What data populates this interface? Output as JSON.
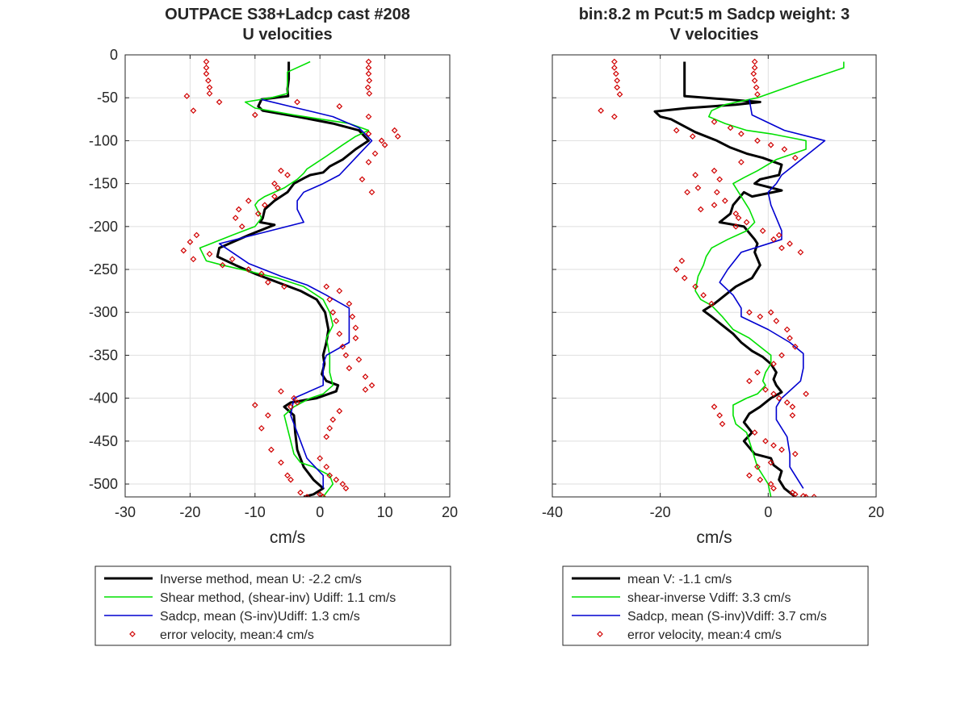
{
  "chart_data": [
    {
      "type": "line",
      "title": [
        "OUTPACE S38+Ladcp cast #208",
        "U velocities"
      ],
      "xlabel": "cm/s",
      "ylabel": "",
      "xlim": [
        -30,
        20
      ],
      "ylim": [
        -515,
        0
      ],
      "xticks": [
        "-30",
        "-20",
        "-10",
        "0",
        "10",
        "20"
      ],
      "yticks": [
        "0",
        "-50",
        "-100",
        "-150",
        "-200",
        "-250",
        "-300",
        "-350",
        "-400",
        "-450",
        "-500"
      ],
      "xtick_values": [
        -30,
        -20,
        -10,
        0,
        10,
        20
      ],
      "ytick_values": [
        0,
        -50,
        -100,
        -150,
        -200,
        -250,
        -300,
        -350,
        -400,
        -450,
        -500
      ],
      "grid": true,
      "legend_position": "below",
      "series": [
        {
          "name": "Inverse method, mean U:  -2.2 cm/s",
          "color": "#000000",
          "style": "thick-line",
          "x": [
            -4.8,
            -4.8,
            -5.0,
            -4.9,
            -9.0,
            -9.5,
            -8.8,
            -3.5,
            2.0,
            6.0,
            7.5,
            5.5,
            3.5,
            1.5,
            0.5,
            -1.5,
            -2.3,
            -4.0,
            -5.0,
            -7.0,
            -8.5,
            -8.8,
            -9.2,
            -7.0,
            -11.0,
            -15.5,
            -15.8,
            -13.0,
            -10.0,
            -6.5,
            -3.0,
            -0.5,
            0.8,
            1.3,
            1.0,
            0.5,
            0.7,
            0.3,
            1.0,
            2.8,
            2.5,
            -0.5,
            -4.5,
            -5.5,
            -4.0,
            -3.8,
            -3.5,
            -2.5,
            -1.0,
            0.5,
            -1.0,
            -2.5
          ],
          "y": [
            -8,
            -28,
            -40,
            -48,
            -52,
            -60,
            -65,
            -72,
            -80,
            -88,
            -100,
            -110,
            -122,
            -130,
            -137,
            -140,
            -143,
            -150,
            -160,
            -170,
            -180,
            -190,
            -195,
            -198,
            -210,
            -225,
            -235,
            -245,
            -255,
            -265,
            -275,
            -285,
            -300,
            -320,
            -335,
            -350,
            -360,
            -372,
            -380,
            -385,
            -392,
            -400,
            -405,
            -410,
            -420,
            -440,
            -460,
            -480,
            -495,
            -505,
            -512,
            -515
          ]
        },
        {
          "name": "Shear method, (shear-inv)  Udiff:  1.1 cm/s",
          "color": "#00e000",
          "style": "line",
          "x": [
            -1.5,
            -5.0,
            -5.0,
            -7.5,
            -11.5,
            -10.0,
            -4.0,
            4.5,
            7.5,
            5.5,
            3.5,
            1.0,
            -1.0,
            -2.0,
            -2.5,
            -3.5,
            -5.5,
            -8.5,
            -9.5,
            -10.0,
            -9.0,
            -10.0,
            -13.5,
            -18.5,
            -17.5,
            -15.0,
            -11.0,
            -6.5,
            -2.5,
            0.5,
            1.5,
            2.0,
            1.0,
            1.5,
            1.5,
            2.0,
            0.5,
            -1.5,
            -4.0,
            -5.5,
            -5.0,
            -4.5,
            -4.0,
            -3.0,
            -1.0,
            1.5,
            2.0,
            0.5
          ],
          "y": [
            -8,
            -20,
            -45,
            -50,
            -55,
            -62,
            -70,
            -80,
            -88,
            -95,
            -105,
            -118,
            -128,
            -133,
            -138,
            -145,
            -155,
            -165,
            -170,
            -175,
            -190,
            -200,
            -210,
            -225,
            -240,
            -245,
            -252,
            -260,
            -270,
            -285,
            -300,
            -315,
            -330,
            -350,
            -370,
            -385,
            -395,
            -400,
            -410,
            -420,
            -435,
            -450,
            -465,
            -475,
            -480,
            -490,
            -500,
            -515
          ]
        },
        {
          "name": "Sadcp, mean (S-inv)Udiff: 1.3 cm/s",
          "color": "#0000d0",
          "style": "line",
          "x": [
            -9.0,
            -3.5,
            2.0,
            6.0,
            8.0,
            5.5,
            3.0,
            0.5,
            -2.5,
            -3.5,
            -3.5,
            -2.5,
            -15.5,
            -11.0,
            -6.0,
            -2.0,
            1.0,
            4.5,
            4.5,
            4.5,
            1.0,
            0.5,
            0.5,
            0.5,
            -4.0,
            -4.5,
            -3.0,
            -2.0,
            0.5,
            0.5
          ],
          "y": [
            -52,
            -62,
            -72,
            -85,
            -100,
            -120,
            -140,
            -150,
            -160,
            -170,
            -180,
            -195,
            -220,
            -243,
            -258,
            -268,
            -280,
            -295,
            -315,
            -335,
            -350,
            -360,
            -370,
            -385,
            -400,
            -420,
            -450,
            -470,
            -490,
            -505
          ]
        },
        {
          "name": "error velocity, mean:4 cm/s",
          "color": "#d00000",
          "style": "markers",
          "x": [
            -17.5,
            7.5,
            -17.5,
            7.5,
            -17.5,
            7.5,
            -17.2,
            7.6,
            -17.0,
            7.4,
            -17.0,
            7.6,
            -20.5,
            -15.5,
            -19.5,
            -10.0,
            -3.5,
            3.0,
            7.5,
            11.5,
            7.5,
            12.0,
            9.5,
            10.0,
            8.5,
            7.5,
            -6.0,
            -5.0,
            -7.0,
            6.5,
            -6.5,
            8.0,
            -7.0,
            -11.0,
            -8.5,
            -12.5,
            -9.5,
            -13.0,
            -12.0,
            -19.0,
            -20.0,
            -21.0,
            -19.5,
            -17.0,
            -15.0,
            -13.5,
            -11.0,
            -9.0,
            -8.0,
            -5.5,
            1.0,
            3.0,
            1.5,
            4.5,
            2.0,
            5.0,
            2.5,
            5.5,
            3.0,
            5.5,
            3.5,
            4.0,
            6.0,
            4.5,
            7.0,
            8.0,
            7.0,
            -6.0,
            -4.0,
            -3.5,
            -4.5,
            3.0,
            -10.0,
            2.0,
            -8.0,
            1.5,
            -9.0,
            1.0,
            -7.5,
            0.0,
            -6.0,
            1.0,
            -5.0,
            1.5,
            -4.5,
            2.5,
            3.5,
            4.0,
            -3.0,
            0.0,
            -2.0,
            0.5
          ],
          "y": [
            -8,
            -8,
            -15,
            -15,
            -22,
            -22,
            -30,
            -30,
            -38,
            -38,
            -45,
            -45,
            -48,
            -55,
            -65,
            -70,
            -55,
            -60,
            -72,
            -88,
            -92,
            -95,
            -100,
            -105,
            -115,
            -125,
            -135,
            -140,
            -150,
            -145,
            -155,
            -160,
            -165,
            -170,
            -175,
            -180,
            -185,
            -190,
            -200,
            -210,
            -218,
            -228,
            -238,
            -232,
            -245,
            -238,
            -250,
            -255,
            -265,
            -270,
            -270,
            -275,
            -285,
            -290,
            -300,
            -305,
            -310,
            -318,
            -325,
            -330,
            -340,
            -350,
            -355,
            -365,
            -375,
            -385,
            -390,
            -392,
            -400,
            -405,
            -410,
            -415,
            -408,
            -425,
            -420,
            -435,
            -435,
            -445,
            -460,
            -470,
            -475,
            -480,
            -490,
            -490,
            -495,
            -495,
            -500,
            -505,
            -510,
            -512,
            -515,
            -515
          ]
        }
      ]
    },
    {
      "type": "line",
      "title": [
        "bin:8.2 m  Pcut:5 m  Sadcp weight: 3",
        "V velocities"
      ],
      "xlabel": "cm/s",
      "ylabel": "",
      "xlim": [
        -40,
        20
      ],
      "ylim": [
        -515,
        0
      ],
      "xticks": [
        "-40",
        "-20",
        "0",
        "20"
      ],
      "yticks": [],
      "xtick_values": [
        -40,
        -20,
        0,
        20
      ],
      "ytick_values": [
        0,
        -50,
        -100,
        -150,
        -200,
        -250,
        -300,
        -350,
        -400,
        -450,
        -500
      ],
      "grid": true,
      "legend_position": "below",
      "series": [
        {
          "name": "mean V:  -1.1 cm/s",
          "color": "#000000",
          "style": "thick-line",
          "x": [
            -15.5,
            -15.5,
            -15.5,
            -1.5,
            -6.0,
            -15.0,
            -21.0,
            -20.0,
            -18.0,
            -13.5,
            -9.5,
            -7.0,
            -4.0,
            -1.0,
            2.5,
            2.0,
            -1.5,
            -2.5,
            2.5,
            -3.0,
            -4.5,
            -6.5,
            -7.0,
            -9.0,
            -4.5,
            -2.5,
            -2.0,
            -2.5,
            -1.5,
            -3.0,
            -6.0,
            -8.0,
            -9.0,
            -10.0,
            -12.0,
            -10.5,
            -8.5,
            -6.5,
            -5.0,
            -3.0,
            -1.0,
            0.5,
            1.5,
            1.0,
            1.5,
            2.5,
            0.5,
            -1.5,
            -3.5,
            -4.5,
            -3.0,
            -4.5,
            -2.5,
            0.5,
            1.0,
            2.5,
            2.0,
            3.0,
            5.0
          ],
          "y": [
            -8,
            -30,
            -48,
            -55,
            -58,
            -62,
            -66,
            -72,
            -75,
            -90,
            -100,
            -108,
            -115,
            -120,
            -128,
            -140,
            -145,
            -150,
            -158,
            -165,
            -160,
            -175,
            -185,
            -195,
            -200,
            -215,
            -220,
            -230,
            -245,
            -260,
            -270,
            -280,
            -285,
            -290,
            -298,
            -305,
            -315,
            -325,
            -335,
            -345,
            -352,
            -360,
            -370,
            -378,
            -385,
            -393,
            -400,
            -410,
            -418,
            -428,
            -440,
            -450,
            -465,
            -470,
            -478,
            -485,
            -495,
            -505,
            -515
          ]
        },
        {
          "name": "shear-inverse Vdiff:  3.3 cm/s",
          "color": "#00e000",
          "style": "line",
          "x": [
            14.0,
            14.0,
            7.0,
            -2.0,
            -8.0,
            -10.5,
            -11.0,
            -8.0,
            -4.0,
            0.5,
            7.0,
            7.0,
            1.5,
            -2.0,
            -4.5,
            -6.5,
            -5.5,
            -3.5,
            -2.5,
            -4.0,
            -7.5,
            -10.5,
            -11.5,
            -12.0,
            -13.0,
            -13.5,
            -12.5,
            -10.5,
            -8.5,
            -6.5,
            -3.5,
            -1.5,
            0.5,
            0.5,
            -0.5,
            -1.0,
            -0.5,
            -2.0,
            -4.0,
            -6.5,
            -6.5,
            -6.0,
            -4.0,
            -3.5,
            -3.0,
            -2.0,
            0.0,
            0.5
          ],
          "y": [
            -8,
            -15,
            -30,
            -50,
            -58,
            -65,
            -72,
            -80,
            -88,
            -92,
            -100,
            -110,
            -122,
            -135,
            -143,
            -150,
            -160,
            -180,
            -195,
            -205,
            -215,
            -225,
            -235,
            -245,
            -258,
            -275,
            -285,
            -292,
            -305,
            -320,
            -330,
            -340,
            -350,
            -360,
            -370,
            -380,
            -385,
            -395,
            -400,
            -408,
            -420,
            -430,
            -440,
            -450,
            -460,
            -480,
            -500,
            -515
          ]
        },
        {
          "name": "Sadcp, mean (S-inv)Vdiff: 3.7 cm/s",
          "color": "#0000d0",
          "style": "line",
          "x": [
            -3.5,
            -3.0,
            3.0,
            10.5,
            6.5,
            2.5,
            1.5,
            0.0,
            0.5,
            1.5,
            2.5,
            2.5,
            -5.0,
            -7.5,
            -9.0,
            -6.5,
            -5.0,
            -5.0,
            0.0,
            4.0,
            6.5,
            6.5,
            6.0,
            2.5,
            1.5,
            1.5,
            3.5,
            4.0,
            4.0,
            6.5
          ],
          "y": [
            -52,
            -70,
            -88,
            -100,
            -120,
            -140,
            -150,
            -160,
            -175,
            -190,
            -205,
            -215,
            -230,
            -250,
            -265,
            -280,
            -295,
            -305,
            -320,
            -335,
            -348,
            -365,
            -380,
            -400,
            -410,
            -425,
            -445,
            -465,
            -480,
            -505
          ]
        },
        {
          "name": "error velocity, mean:4 cm/s",
          "color": "#d00000",
          "style": "markers",
          "x": [
            -28.5,
            -2.5,
            -28.5,
            -2.5,
            -28.2,
            -2.7,
            -28.0,
            -2.5,
            -28.0,
            -2.2,
            -27.5,
            -2.0,
            -31.0,
            -28.5,
            -17.0,
            -14.0,
            -10.0,
            -7.0,
            -5.0,
            -2.0,
            0.5,
            3.0,
            5.0,
            -5.0,
            -10.0,
            -13.5,
            -9.0,
            -13.0,
            -15.0,
            -9.5,
            -8.0,
            -10.0,
            -12.5,
            -6.0,
            -5.5,
            -4.0,
            -6.0,
            -1.0,
            2.0,
            1.0,
            4.0,
            2.5,
            6.0,
            -16.0,
            -17.0,
            -15.5,
            -13.5,
            -12.0,
            -10.5,
            -3.5,
            -1.5,
            0.5,
            1.5,
            3.5,
            4.0,
            5.0,
            2.5,
            1.0,
            -2.0,
            -3.5,
            -0.5,
            1.0,
            2.0,
            3.5,
            4.5,
            7.0,
            4.5,
            -10.0,
            -9.0,
            -8.5,
            -2.5,
            -0.5,
            1.0,
            2.5,
            5.0,
            0.5,
            -2.0,
            -3.5,
            -1.5,
            0.5,
            1.0,
            4.5,
            5.0,
            6.5,
            7.0,
            8.5
          ],
          "y": [
            -8,
            -8,
            -15,
            -15,
            -22,
            -22,
            -30,
            -30,
            -38,
            -38,
            -46,
            -46,
            -65,
            -72,
            -88,
            -95,
            -78,
            -85,
            -92,
            -100,
            -105,
            -110,
            -120,
            -125,
            -135,
            -140,
            -145,
            -155,
            -160,
            -160,
            -170,
            -175,
            -180,
            -185,
            -190,
            -195,
            -200,
            -205,
            -210,
            -215,
            -220,
            -225,
            -230,
            -240,
            -250,
            -260,
            -270,
            -280,
            -290,
            -300,
            -305,
            -300,
            -310,
            -320,
            -330,
            -340,
            -350,
            -360,
            -370,
            -380,
            -390,
            -395,
            -400,
            -405,
            -410,
            -395,
            -420,
            -410,
            -420,
            -430,
            -440,
            -450,
            -455,
            -460,
            -465,
            -475,
            -480,
            -490,
            -495,
            -500,
            -505,
            -510,
            -512,
            -514,
            -515,
            -515
          ]
        }
      ]
    }
  ]
}
